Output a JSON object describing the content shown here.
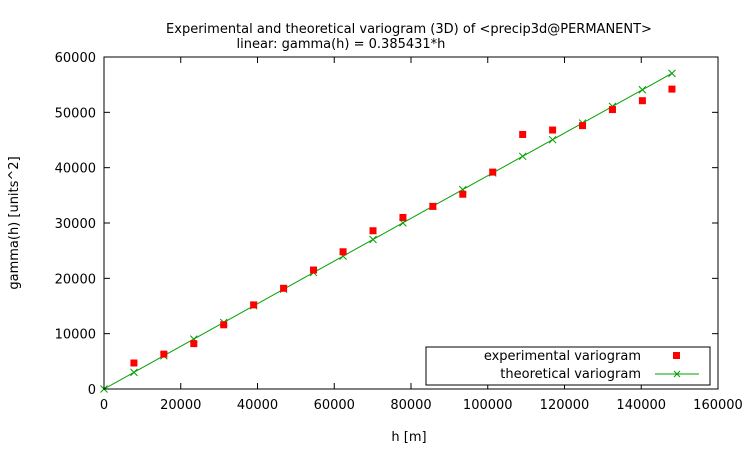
{
  "chart_data": {
    "type": "scatter",
    "title": "Experimental and theoretical variogram (3D) of <precip3d@PERMANENT>",
    "subtitle": "linear: gamma(h) = 0.385431*h",
    "xlabel": "h [m]",
    "ylabel": "gamma(h) [units^2]",
    "xlim": [
      0,
      160000
    ],
    "ylim": [
      0,
      60000
    ],
    "x_ticks": [
      0,
      20000,
      40000,
      60000,
      80000,
      100000,
      120000,
      140000,
      160000
    ],
    "y_ticks": [
      0,
      10000,
      20000,
      30000,
      40000,
      50000,
      60000
    ],
    "x_tick_labels": [
      "0",
      "20000",
      "40000",
      "60000",
      "80000",
      "100000",
      "120000",
      "140000",
      "160000"
    ],
    "y_tick_labels": [
      "0",
      "10000",
      "20000",
      "30000",
      "40000",
      "50000",
      "60000"
    ],
    "legend_position": "bottom-right",
    "grid": false,
    "series": [
      {
        "name": "experimental variogram",
        "style": "points",
        "marker": "square",
        "color": "#ff0000",
        "x": [
          7800,
          15600,
          23400,
          31200,
          39000,
          46800,
          54600,
          62300,
          70100,
          77900,
          85700,
          93500,
          101300,
          109100,
          116900,
          124700,
          132500,
          140300,
          148000
        ],
        "y": [
          4700,
          6300,
          8200,
          11600,
          15200,
          18200,
          21500,
          24800,
          28600,
          31000,
          33000,
          35200,
          39200,
          46000,
          46800,
          47600,
          50500,
          52100,
          54200
        ]
      },
      {
        "name": "theoretical variogram",
        "style": "linespoints",
        "marker": "cross",
        "color": "#00a000",
        "x": [
          0,
          7800,
          15600,
          23400,
          31200,
          39000,
          46800,
          54600,
          62300,
          70100,
          77900,
          85700,
          93500,
          101300,
          109100,
          116900,
          124700,
          132500,
          140300,
          148000
        ],
        "y": [
          0,
          3006,
          6013,
          9019,
          12025,
          15032,
          18038,
          21045,
          24012,
          27019,
          30025,
          33031,
          36038,
          39044,
          42051,
          45057,
          48063,
          51070,
          54076,
          57044
        ]
      }
    ]
  }
}
